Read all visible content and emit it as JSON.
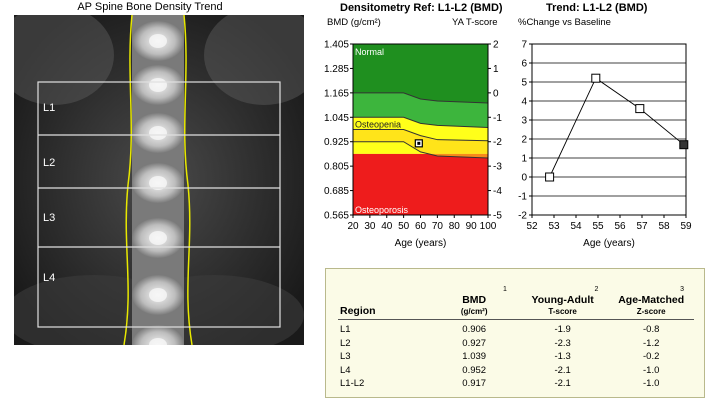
{
  "scan": {
    "title": "AP Spine Bone Density Trend",
    "regions": [
      "L1",
      "L2",
      "L3",
      "L4"
    ]
  },
  "densitometry": {
    "title": "Densitometry Ref: L1-L2 (BMD)",
    "left_label": "BMD (g/cm²)",
    "right_label": "YA T-score",
    "xlabel": "Age (years)",
    "zones": {
      "normal": "Normal",
      "osteopenia": "Osteopenia",
      "osteoporosis": "Osteoporosis"
    },
    "colors": {
      "normal_dark": "#1f8f1f",
      "normal_light": "#3db53d",
      "osteopenia": "#ffff1a",
      "osteoporosis": "#ee1c1c"
    }
  },
  "trend": {
    "title": "Trend: L1-L2 (BMD)",
    "ylabel": "%Change vs Baseline",
    "xlabel": "Age (years)"
  },
  "chart_data": [
    {
      "type": "area",
      "title": "Densitometry Ref: L1-L2 (BMD)",
      "xlabel": "Age (years)",
      "ylabel": "BMD (g/cm²)",
      "y2label": "YA T-score",
      "x_ticks": [
        20,
        30,
        40,
        50,
        60,
        70,
        80,
        90,
        100
      ],
      "y_ticks": [
        "1.405",
        "1.285",
        "1.165",
        "1.045",
        "0.925",
        "0.805",
        "0.685",
        "0.565"
      ],
      "y2_ticks": [
        "2",
        "1",
        "0",
        "-1",
        "-2",
        "-3",
        "-4",
        "-5"
      ],
      "xlim": [
        20,
        100
      ],
      "ylim": [
        0.565,
        1.405
      ],
      "y2lim": [
        -5,
        2
      ],
      "bands": [
        {
          "name": "Normal",
          "from_tscore": 2,
          "to_tscore": -1
        },
        {
          "name": "Osteopenia",
          "from_tscore": -1,
          "to_tscore": -2.5
        },
        {
          "name": "Osteoporosis",
          "from_tscore": -2.5,
          "to_tscore": -5
        }
      ],
      "reference_curve": {
        "x": [
          20,
          50,
          60,
          70,
          100
        ],
        "y": [
          1.045,
          1.045,
          1.015,
          1.005,
          0.995
        ]
      },
      "secondary_curve": {
        "x": [
          20,
          50,
          60,
          70,
          100
        ],
        "y": [
          0.985,
          0.985,
          0.955,
          0.935,
          0.93
        ]
      },
      "tertiary_curve": {
        "x": [
          20,
          50,
          60,
          70,
          100
        ],
        "y": [
          0.925,
          0.925,
          0.875,
          0.855,
          0.845
        ]
      },
      "points": [
        {
          "x": 59,
          "y": 0.917
        }
      ]
    },
    {
      "type": "line",
      "title": "Trend: L1-L2 (BMD)",
      "xlabel": "Age (years)",
      "ylabel": "%Change vs Baseline",
      "x_ticks": [
        52,
        53,
        54,
        55,
        56,
        57,
        58,
        59
      ],
      "y_ticks": [
        7,
        6,
        5,
        4,
        3,
        2,
        1,
        0,
        -1,
        -2
      ],
      "xlim": [
        52,
        59
      ],
      "ylim": [
        -2,
        7
      ],
      "x": [
        52.8,
        54.9,
        56.9,
        58.9
      ],
      "y": [
        0.0,
        5.2,
        3.6,
        1.7
      ]
    }
  ],
  "table": {
    "headers": {
      "region": "Region",
      "bmd": "BMD",
      "bmd_unit": "(g/cm²)",
      "bmd_sup": "1",
      "ya": "Young-Adult",
      "ya_unit": "T-score",
      "ya_sup": "2",
      "am": "Age-Matched",
      "am_unit": "Z-score",
      "am_sup": "3"
    },
    "rows": [
      {
        "region": "L1",
        "bmd": "0.906",
        "t": "-1.9",
        "z": "-0.8"
      },
      {
        "region": "L2",
        "bmd": "0.927",
        "t": "-2.3",
        "z": "-1.2"
      },
      {
        "region": "L3",
        "bmd": "1.039",
        "t": "-1.3",
        "z": "-0.2"
      },
      {
        "region": "L4",
        "bmd": "0.952",
        "t": "-2.1",
        "z": "-1.0"
      },
      {
        "region": "L1-L2",
        "bmd": "0.917",
        "t": "-2.1",
        "z": "-1.0"
      }
    ]
  }
}
